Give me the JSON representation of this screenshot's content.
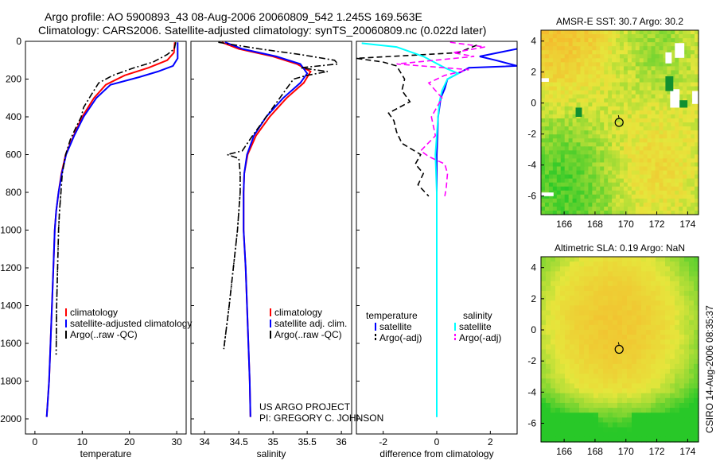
{
  "header": {
    "line1": "Argo profile: AO 5900893_43 08-Aug-2006 20060809_542 1.245S 169.563E",
    "line2": "Climatology: CARS2006. Satellite-adjusted climatology: synTS_20060809.nc (0.022d later)"
  },
  "colors": {
    "climatology": "#ff0000",
    "satellite": "#0000ff",
    "argo": "#000000",
    "sal_satellite": "#00ffff",
    "sal_argo": "#ff00ff"
  },
  "chart_data": [
    {
      "type": "line",
      "name": "temperature-profile",
      "xlabel": "temperature",
      "ylabel": "",
      "xlim": [
        -2,
        32
      ],
      "ylim": [
        2080,
        0
      ],
      "xticks": [
        0,
        10,
        20,
        30
      ],
      "yticks": [
        0,
        200,
        400,
        600,
        800,
        1000,
        1200,
        1400,
        1600,
        1800,
        2000
      ],
      "legend": [
        "climatology",
        "satellite-adjusted climatology",
        "Argo(..raw -QC)"
      ],
      "series": [
        {
          "name": "climatology",
          "color": "#ff0000",
          "style": "solid",
          "points": [
            [
              29.6,
              5
            ],
            [
              29.4,
              60
            ],
            [
              28,
              100
            ],
            [
              24,
              140
            ],
            [
              19,
              180
            ],
            [
              15,
              230
            ],
            [
              12.5,
              300
            ],
            [
              10,
              400
            ],
            [
              8.2,
              500
            ],
            [
              6.5,
              600
            ],
            [
              5.6,
              700
            ],
            [
              5,
              800
            ],
            [
              4.5,
              900
            ],
            [
              4.2,
              1000
            ],
            [
              3.9,
              1200
            ],
            [
              3.6,
              1400
            ],
            [
              3.3,
              1600
            ],
            [
              3,
              1800
            ],
            [
              2.5,
              1990
            ]
          ]
        },
        {
          "name": "satellite-adjusted climatology",
          "color": "#0000ff",
          "style": "solid",
          "points": [
            [
              30.2,
              5
            ],
            [
              30.2,
              90
            ],
            [
              29.2,
              130
            ],
            [
              26,
              160
            ],
            [
              22,
              190
            ],
            [
              16,
              230
            ],
            [
              13,
              300
            ],
            [
              10.3,
              400
            ],
            [
              8.3,
              500
            ],
            [
              6.6,
              600
            ],
            [
              5.7,
              700
            ],
            [
              5,
              800
            ],
            [
              4.5,
              900
            ],
            [
              4.2,
              1000
            ],
            [
              3.9,
              1200
            ],
            [
              3.6,
              1400
            ],
            [
              3.3,
              1600
            ],
            [
              3,
              1800
            ],
            [
              2.5,
              1990
            ]
          ]
        },
        {
          "name": "Argo(..raw -QC)",
          "color": "#000000",
          "style": "dashdot",
          "points": [
            [
              29.8,
              5
            ],
            [
              29.5,
              40
            ],
            [
              28,
              70
            ],
            [
              25,
              110
            ],
            [
              21,
              140
            ],
            [
              16.5,
              180
            ],
            [
              13.5,
              220
            ],
            [
              12,
              280
            ],
            [
              10.3,
              350
            ],
            [
              9.8,
              400
            ],
            [
              8.8,
              450
            ],
            [
              7.5,
              520
            ],
            [
              6.5,
              600
            ],
            [
              5.8,
              700
            ],
            [
              5.5,
              800
            ],
            [
              5.2,
              900
            ],
            [
              5,
              1000
            ],
            [
              4.8,
              1200
            ],
            [
              4.6,
              1400
            ],
            [
              4.5,
              1660
            ]
          ]
        }
      ]
    },
    {
      "type": "line",
      "name": "salinity-profile",
      "xlabel": "salinity",
      "xlim": [
        33.8,
        36.15
      ],
      "ylim": [
        2080,
        0
      ],
      "xticks": [
        34,
        34.5,
        35,
        35.5,
        36
      ],
      "legend": [
        "climatology",
        "satellite adj. clim.",
        "Argo(..raw -QC)"
      ],
      "series": [
        {
          "name": "climatology",
          "color": "#ff0000",
          "style": "solid",
          "points": [
            [
              34.25,
              5
            ],
            [
              34.5,
              40
            ],
            [
              35,
              80
            ],
            [
              35.35,
              120
            ],
            [
              35.55,
              160
            ],
            [
              35.45,
              220
            ],
            [
              35.2,
              300
            ],
            [
              34.95,
              400
            ],
            [
              34.75,
              500
            ],
            [
              34.63,
              600
            ],
            [
              34.58,
              700
            ],
            [
              34.57,
              800
            ],
            [
              34.57,
              1000
            ],
            [
              34.6,
              1200
            ],
            [
              34.62,
              1400
            ],
            [
              34.64,
              1600
            ],
            [
              34.66,
              1800
            ],
            [
              34.67,
              1990
            ]
          ]
        },
        {
          "name": "satellite adj. clim.",
          "color": "#0000ff",
          "style": "solid",
          "points": [
            [
              34.3,
              5
            ],
            [
              34.55,
              40
            ],
            [
              35.05,
              80
            ],
            [
              35.4,
              120
            ],
            [
              35.5,
              170
            ],
            [
              35.4,
              220
            ],
            [
              35.15,
              300
            ],
            [
              34.9,
              400
            ],
            [
              34.72,
              500
            ],
            [
              34.62,
              600
            ],
            [
              34.58,
              700
            ],
            [
              34.57,
              800
            ],
            [
              34.57,
              1000
            ],
            [
              34.6,
              1200
            ],
            [
              34.62,
              1400
            ],
            [
              34.64,
              1600
            ],
            [
              34.66,
              1800
            ],
            [
              34.67,
              1990
            ]
          ]
        },
        {
          "name": "Argo(..raw -QC)",
          "color": "#000000",
          "style": "dashdot",
          "points": [
            [
              34.2,
              5
            ],
            [
              34.8,
              40
            ],
            [
              35.4,
              70
            ],
            [
              35.9,
              100
            ],
            [
              35.95,
              120
            ],
            [
              35.4,
              140
            ],
            [
              35.8,
              160
            ],
            [
              35.5,
              180
            ],
            [
              35.3,
              200
            ],
            [
              35.1,
              300
            ],
            [
              34.9,
              400
            ],
            [
              34.7,
              500
            ],
            [
              34.55,
              580
            ],
            [
              34.33,
              600
            ],
            [
              34.5,
              620
            ],
            [
              34.52,
              700
            ],
            [
              34.52,
              800
            ],
            [
              34.48,
              1000
            ],
            [
              34.42,
              1200
            ],
            [
              34.36,
              1400
            ],
            [
              34.28,
              1630
            ]
          ]
        }
      ]
    },
    {
      "type": "line",
      "name": "difference-profile",
      "xlabel": "difference from climatology",
      "xlim": [
        -3,
        3
      ],
      "ylim": [
        2080,
        0
      ],
      "xticks": [
        -2,
        0,
        2
      ],
      "legend_groups": [
        {
          "title": "temperature",
          "items": [
            "satellite",
            "Argo(-adj)"
          ]
        },
        {
          "title": "salinity",
          "items": [
            "satellite",
            "Argo(-adj)"
          ]
        }
      ],
      "series": [
        {
          "name": "temperature satellite",
          "color": "#0000ff",
          "style": "solid",
          "points": [
            [
              3,
              40
            ],
            [
              1.6,
              80
            ],
            [
              2.2,
              100
            ],
            [
              3,
              130
            ],
            [
              1.2,
              140
            ],
            [
              0.4,
              200
            ],
            [
              0.3,
              250
            ],
            [
              0.15,
              300
            ],
            [
              0.1,
              350
            ],
            [
              0.05,
              400
            ],
            [
              0.03,
              500
            ],
            [
              0,
              600
            ],
            [
              0,
              800
            ],
            [
              0,
              1000
            ],
            [
              0,
              1500
            ],
            [
              0,
              1990
            ]
          ]
        },
        {
          "name": "temperature Argo(-adj)",
          "color": "#000000",
          "style": "dashed",
          "points": [
            [
              1.5,
              20
            ],
            [
              0.8,
              60
            ],
            [
              -3,
              90
            ],
            [
              -2,
              110
            ],
            [
              -1.5,
              130
            ],
            [
              -1.2,
              200
            ],
            [
              -1.3,
              260
            ],
            [
              -1,
              320
            ],
            [
              -1.8,
              380
            ],
            [
              -1.6,
              420
            ],
            [
              -1.5,
              480
            ],
            [
              -1.3,
              540
            ],
            [
              -0.6,
              600
            ],
            [
              -0.8,
              650
            ],
            [
              -0.5,
              700
            ],
            [
              -0.7,
              760
            ],
            [
              -0.3,
              820
            ]
          ]
        },
        {
          "name": "salinity satellite",
          "color": "#00ffff",
          "style": "solid",
          "points": [
            [
              -2.8,
              10
            ],
            [
              -1.5,
              30
            ],
            [
              -0.5,
              80
            ],
            [
              0.3,
              140
            ],
            [
              0.8,
              170
            ],
            [
              0.4,
              200
            ],
            [
              0.2,
              260
            ],
            [
              0.1,
              320
            ],
            [
              0.05,
              400
            ],
            [
              0,
              500
            ],
            [
              -0.05,
              600
            ],
            [
              0,
              800
            ],
            [
              0,
              1000
            ],
            [
              0,
              1500
            ],
            [
              0,
              1990
            ]
          ]
        },
        {
          "name": "salinity Argo(-adj)",
          "color": "#ff00ff",
          "style": "dashed",
          "points": [
            [
              0.5,
              5
            ],
            [
              1.8,
              30
            ],
            [
              0.6,
              60
            ],
            [
              1.4,
              80
            ],
            [
              -1.5,
              120
            ],
            [
              1.2,
              150
            ],
            [
              0.3,
              180
            ],
            [
              -0.3,
              220
            ],
            [
              0.2,
              300
            ],
            [
              -0.2,
              400
            ],
            [
              -0.05,
              500
            ],
            [
              -0.6,
              580
            ],
            [
              -0.3,
              610
            ],
            [
              0.3,
              650
            ],
            [
              0.4,
              700
            ],
            [
              0.35,
              780
            ],
            [
              0.3,
              820
            ]
          ]
        }
      ]
    },
    {
      "type": "heatmap",
      "name": "sst-map",
      "title": "AMSR-E SST: 30.7 Argo: 30.2",
      "xlim": [
        164.5,
        174.7
      ],
      "ylim": [
        -7.2,
        4.7
      ],
      "xticks": [
        166,
        168,
        170,
        172,
        174
      ],
      "yticks": [
        -6,
        -4,
        -2,
        0,
        2,
        4
      ],
      "argo_position": [
        169.56,
        -1.25
      ]
    },
    {
      "type": "heatmap",
      "name": "sla-map",
      "title": "Altimetric SLA: 0.19 Argo: NaN",
      "xlim": [
        164.5,
        174.7
      ],
      "ylim": [
        -7.2,
        4.7
      ],
      "xticks": [
        166,
        168,
        170,
        172,
        174
      ],
      "yticks": [
        -6,
        -4,
        -2,
        0,
        2,
        4
      ],
      "argo_position": [
        169.56,
        -1.25
      ]
    }
  ],
  "credits": {
    "project": "US ARGO PROJECT",
    "pi": "PI: GREGORY C. JOHNSON",
    "stamp": "CSIRO 14-Aug-2006 08:35:37"
  }
}
